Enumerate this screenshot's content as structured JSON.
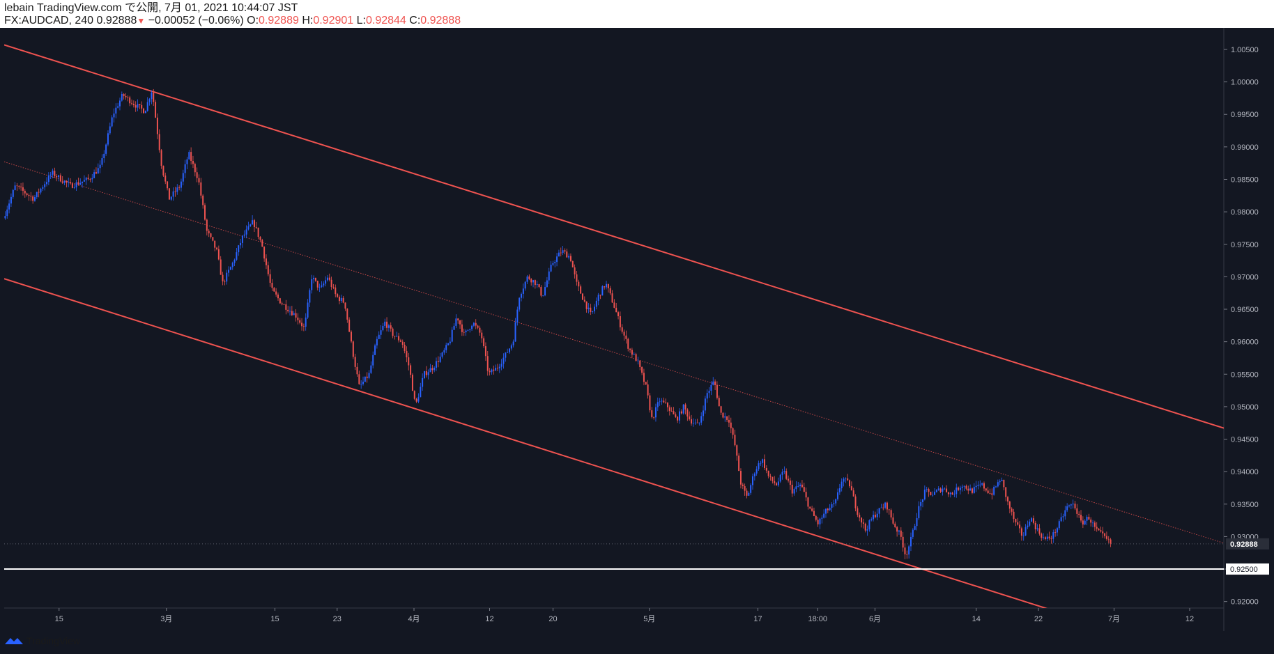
{
  "header": {
    "publish_line": "lebain TradingView.com で公開, 7月 01, 2021 10:44:07 JST",
    "symbol": "FX:AUDCAD, 240",
    "last": "0.92888",
    "change": "−0.00052 (−0.06%)",
    "o_label": "O:",
    "o": "0.92889",
    "h_label": "H:",
    "h": "0.92901",
    "l_label": "L:",
    "l": "0.92844",
    "c_label": "C:",
    "c": "0.92888"
  },
  "footer": {
    "brand": "TradingView",
    "logo_icon": "tradingview-logo-icon"
  },
  "colors": {
    "background": "#131722",
    "up": "#2962ff",
    "down": "#ef5350",
    "channel": "#ef5350",
    "support": "#ffffff",
    "axis_text": "#b2b5be"
  },
  "chart_data": {
    "type": "candlestick",
    "symbol": "FX:AUDCAD",
    "interval": "240",
    "x_ticks": [
      {
        "label": "15",
        "t": 0.045
      },
      {
        "label": "3月",
        "t": 0.133
      },
      {
        "label": "15",
        "t": 0.222
      },
      {
        "label": "23",
        "t": 0.273
      },
      {
        "label": "4月",
        "t": 0.336
      },
      {
        "label": "12",
        "t": 0.398
      },
      {
        "label": "20",
        "t": 0.45
      },
      {
        "label": "5月",
        "t": 0.529
      },
      {
        "label": "17",
        "t": 0.618
      },
      {
        "label": "18:00",
        "t": 0.667
      },
      {
        "label": "6月",
        "t": 0.714
      },
      {
        "label": "14",
        "t": 0.797
      },
      {
        "label": "22",
        "t": 0.848
      },
      {
        "label": "7月",
        "t": 0.91
      },
      {
        "label": "12",
        "t": 0.972
      }
    ],
    "y_ticks": [
      "1.00500",
      "1.00000",
      "0.99500",
      "0.99000",
      "0.98500",
      "0.98000",
      "0.97500",
      "0.97000",
      "0.96500",
      "0.96000",
      "0.95500",
      "0.95000",
      "0.94500",
      "0.94000",
      "0.93500",
      "0.93000",
      "0.92500",
      "0.92000"
    ],
    "ylim": [
      0.919,
      1.008
    ],
    "last_price": {
      "value": 0.92888,
      "label": "0.92888"
    },
    "support_line": {
      "value": 0.925,
      "label": "0.92500"
    },
    "channel": {
      "upper": [
        [
          0.0,
          1.0057
        ],
        [
          1.0,
          0.9467
        ]
      ],
      "lower": [
        [
          0.0,
          0.9697
        ],
        [
          0.862,
          0.9185
        ]
      ],
      "mid": [
        [
          0.0,
          0.9877
        ],
        [
          1.0,
          0.929
        ]
      ]
    },
    "price_path": [
      [
        0.0,
        0.979
      ],
      [
        0.01,
        0.984
      ],
      [
        0.025,
        0.982
      ],
      [
        0.04,
        0.986
      ],
      [
        0.055,
        0.984
      ],
      [
        0.07,
        0.985
      ],
      [
        0.08,
        0.987
      ],
      [
        0.09,
        0.995
      ],
      [
        0.098,
        0.998
      ],
      [
        0.108,
        0.9965
      ],
      [
        0.116,
        0.9955
      ],
      [
        0.122,
        0.9988
      ],
      [
        0.13,
        0.987
      ],
      [
        0.136,
        0.982
      ],
      [
        0.145,
        0.984
      ],
      [
        0.152,
        0.989
      ],
      [
        0.16,
        0.985
      ],
      [
        0.167,
        0.977
      ],
      [
        0.175,
        0.974
      ],
      [
        0.18,
        0.969
      ],
      [
        0.188,
        0.972
      ],
      [
        0.196,
        0.976
      ],
      [
        0.205,
        0.9785
      ],
      [
        0.212,
        0.975
      ],
      [
        0.22,
        0.968
      ],
      [
        0.228,
        0.966
      ],
      [
        0.24,
        0.964
      ],
      [
        0.247,
        0.962
      ],
      [
        0.253,
        0.97
      ],
      [
        0.26,
        0.968
      ],
      [
        0.266,
        0.97
      ],
      [
        0.273,
        0.967
      ],
      [
        0.28,
        0.966
      ],
      [
        0.286,
        0.959
      ],
      [
        0.292,
        0.953
      ],
      [
        0.3,
        0.955
      ],
      [
        0.306,
        0.96
      ],
      [
        0.313,
        0.963
      ],
      [
        0.32,
        0.961
      ],
      [
        0.327,
        0.96
      ],
      [
        0.333,
        0.956
      ],
      [
        0.338,
        0.95
      ],
      [
        0.345,
        0.955
      ],
      [
        0.352,
        0.956
      ],
      [
        0.36,
        0.958
      ],
      [
        0.366,
        0.96
      ],
      [
        0.372,
        0.964
      ],
      [
        0.378,
        0.961
      ],
      [
        0.385,
        0.963
      ],
      [
        0.392,
        0.961
      ],
      [
        0.398,
        0.955
      ],
      [
        0.405,
        0.956
      ],
      [
        0.412,
        0.958
      ],
      [
        0.418,
        0.96
      ],
      [
        0.423,
        0.967
      ],
      [
        0.43,
        0.97
      ],
      [
        0.437,
        0.969
      ],
      [
        0.442,
        0.967
      ],
      [
        0.45,
        0.972
      ],
      [
        0.458,
        0.974
      ],
      [
        0.465,
        0.973
      ],
      [
        0.47,
        0.969
      ],
      [
        0.477,
        0.966
      ],
      [
        0.482,
        0.964
      ],
      [
        0.488,
        0.967
      ],
      [
        0.494,
        0.969
      ],
      [
        0.5,
        0.966
      ],
      [
        0.507,
        0.962
      ],
      [
        0.513,
        0.959
      ],
      [
        0.52,
        0.957
      ],
      [
        0.527,
        0.953
      ],
      [
        0.532,
        0.948
      ],
      [
        0.538,
        0.951
      ],
      [
        0.545,
        0.95
      ],
      [
        0.552,
        0.948
      ],
      [
        0.558,
        0.95
      ],
      [
        0.563,
        0.948
      ],
      [
        0.57,
        0.947
      ],
      [
        0.577,
        0.952
      ],
      [
        0.583,
        0.954
      ],
      [
        0.588,
        0.949
      ],
      [
        0.595,
        0.948
      ],
      [
        0.6,
        0.944
      ],
      [
        0.605,
        0.938
      ],
      [
        0.61,
        0.936
      ],
      [
        0.616,
        0.94
      ],
      [
        0.622,
        0.942
      ],
      [
        0.628,
        0.939
      ],
      [
        0.634,
        0.938
      ],
      [
        0.64,
        0.94
      ],
      [
        0.647,
        0.937
      ],
      [
        0.654,
        0.938
      ],
      [
        0.662,
        0.934
      ],
      [
        0.668,
        0.932
      ],
      [
        0.675,
        0.934
      ],
      [
        0.682,
        0.935
      ],
      [
        0.688,
        0.939
      ],
      [
        0.694,
        0.938
      ],
      [
        0.7,
        0.934
      ],
      [
        0.707,
        0.931
      ],
      [
        0.713,
        0.933
      ],
      [
        0.718,
        0.934
      ],
      [
        0.724,
        0.935
      ],
      [
        0.73,
        0.932
      ],
      [
        0.736,
        0.93
      ],
      [
        0.74,
        0.927
      ],
      [
        0.745,
        0.93
      ],
      [
        0.75,
        0.934
      ],
      [
        0.756,
        0.937
      ],
      [
        0.762,
        0.9365
      ],
      [
        0.77,
        0.9375
      ],
      [
        0.778,
        0.9365
      ],
      [
        0.786,
        0.938
      ],
      [
        0.794,
        0.937
      ],
      [
        0.802,
        0.938
      ],
      [
        0.81,
        0.9365
      ],
      [
        0.818,
        0.939
      ],
      [
        0.824,
        0.935
      ],
      [
        0.83,
        0.932
      ],
      [
        0.836,
        0.93
      ],
      [
        0.842,
        0.933
      ],
      [
        0.848,
        0.931
      ],
      [
        0.854,
        0.9295
      ],
      [
        0.86,
        0.93
      ],
      [
        0.866,
        0.932
      ],
      [
        0.872,
        0.9345
      ],
      [
        0.878,
        0.935
      ],
      [
        0.884,
        0.932
      ],
      [
        0.89,
        0.933
      ],
      [
        0.896,
        0.931
      ],
      [
        0.902,
        0.93
      ],
      [
        0.908,
        0.9289
      ]
    ]
  }
}
